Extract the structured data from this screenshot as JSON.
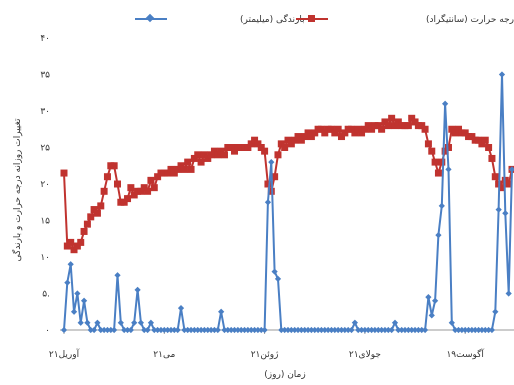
{
  "chart_data": {
    "type": "line",
    "title": "",
    "xlabel": "زمان (روز)",
    "ylabel": "تغییرات روزانه درجه حرارت و بارندگی",
    "ylim": [
      0,
      40
    ],
    "yticks": [
      "۰",
      "۵.",
      "۱۰",
      "۱۵",
      "۲۰",
      "۲۵",
      "۳۰",
      "۳۵",
      "۴۰"
    ],
    "ytick_values": [
      0,
      5,
      10,
      15,
      20,
      25,
      30,
      35,
      40
    ],
    "xlim": [
      1,
      135
    ],
    "xticks": [
      {
        "day": 1,
        "label": "۲۱آوریل"
      },
      {
        "day": 31,
        "label": "۲۱می"
      },
      {
        "day": 61,
        "label": "۲۱ژوئن"
      },
      {
        "day": 91,
        "label": "۲۱جولای"
      },
      {
        "day": 121,
        "label": "۱۹آگوست"
      }
    ],
    "legend_position": "top",
    "series": [
      {
        "name": "بارندگی (میلیمتر)",
        "color": "#4a7fc4",
        "marker": "diamond",
        "points": [
          [
            1,
            0
          ],
          [
            2,
            6.5
          ],
          [
            3,
            9
          ],
          [
            4,
            2.5
          ],
          [
            5,
            5
          ],
          [
            6,
            1
          ],
          [
            7,
            4
          ],
          [
            8,
            1
          ],
          [
            9,
            0
          ],
          [
            10,
            0
          ],
          [
            11,
            1
          ],
          [
            12,
            0
          ],
          [
            13,
            0
          ],
          [
            14,
            0
          ],
          [
            15,
            0
          ],
          [
            16,
            0
          ],
          [
            17,
            7.5
          ],
          [
            18,
            1
          ],
          [
            19,
            0
          ],
          [
            20,
            0
          ],
          [
            21,
            0
          ],
          [
            22,
            1
          ],
          [
            23,
            5.5
          ],
          [
            24,
            1
          ],
          [
            25,
            0
          ],
          [
            26,
            0
          ],
          [
            27,
            1
          ],
          [
            28,
            0
          ],
          [
            29,
            0
          ],
          [
            30,
            0
          ],
          [
            31,
            0
          ],
          [
            32,
            0
          ],
          [
            33,
            0
          ],
          [
            34,
            0
          ],
          [
            35,
            0
          ],
          [
            36,
            3
          ],
          [
            37,
            0
          ],
          [
            38,
            0
          ],
          [
            39,
            0
          ],
          [
            40,
            0
          ],
          [
            41,
            0
          ],
          [
            42,
            0
          ],
          [
            43,
            0
          ],
          [
            44,
            0
          ],
          [
            45,
            0
          ],
          [
            46,
            0
          ],
          [
            47,
            0
          ],
          [
            48,
            2.5
          ],
          [
            49,
            0
          ],
          [
            50,
            0
          ],
          [
            51,
            0
          ],
          [
            52,
            0
          ],
          [
            53,
            0
          ],
          [
            54,
            0
          ],
          [
            55,
            0
          ],
          [
            56,
            0
          ],
          [
            57,
            0
          ],
          [
            58,
            0
          ],
          [
            59,
            0
          ],
          [
            60,
            0
          ],
          [
            61,
            0
          ],
          [
            62,
            17.5
          ],
          [
            63,
            23
          ],
          [
            64,
            8
          ],
          [
            65,
            7
          ],
          [
            66,
            0
          ],
          [
            67,
            0
          ],
          [
            68,
            0
          ],
          [
            69,
            0
          ],
          [
            70,
            0
          ],
          [
            71,
            0
          ],
          [
            72,
            0
          ],
          [
            73,
            0
          ],
          [
            74,
            0
          ],
          [
            75,
            0
          ],
          [
            76,
            0
          ],
          [
            77,
            0
          ],
          [
            78,
            0
          ],
          [
            79,
            0
          ],
          [
            80,
            0
          ],
          [
            81,
            0
          ],
          [
            82,
            0
          ],
          [
            83,
            0
          ],
          [
            84,
            0
          ],
          [
            85,
            0
          ],
          [
            86,
            0
          ],
          [
            87,
            0
          ],
          [
            88,
            1
          ],
          [
            89,
            0
          ],
          [
            90,
            0
          ],
          [
            91,
            0
          ],
          [
            92,
            0
          ],
          [
            93,
            0
          ],
          [
            94,
            0
          ],
          [
            95,
            0
          ],
          [
            96,
            0
          ],
          [
            97,
            0
          ],
          [
            98,
            0
          ],
          [
            99,
            0
          ],
          [
            100,
            1
          ],
          [
            101,
            0
          ],
          [
            102,
            0
          ],
          [
            103,
            0
          ],
          [
            104,
            0
          ],
          [
            105,
            0
          ],
          [
            106,
            0
          ],
          [
            107,
            0
          ],
          [
            108,
            0
          ],
          [
            109,
            0
          ],
          [
            110,
            4.5
          ],
          [
            111,
            2
          ],
          [
            112,
            4
          ],
          [
            113,
            13
          ],
          [
            114,
            17
          ],
          [
            115,
            31
          ],
          [
            116,
            22
          ],
          [
            117,
            1
          ],
          [
            118,
            0
          ],
          [
            119,
            0
          ],
          [
            120,
            0
          ],
          [
            121,
            0
          ],
          [
            122,
            0
          ],
          [
            123,
            0
          ],
          [
            124,
            0
          ],
          [
            125,
            0
          ],
          [
            126,
            0
          ],
          [
            127,
            0
          ],
          [
            128,
            0
          ],
          [
            129,
            0
          ],
          [
            130,
            2.5
          ],
          [
            131,
            16.5
          ],
          [
            132,
            35
          ],
          [
            133,
            16
          ],
          [
            134,
            5
          ],
          [
            135,
            22
          ]
        ]
      },
      {
        "name": "درجه حرارت (سانتیگراد)",
        "color": "#c0332f",
        "marker": "square",
        "points": [
          [
            1,
            21.5
          ],
          [
            2,
            11.5
          ],
          [
            3,
            12
          ],
          [
            4,
            11
          ],
          [
            5,
            11.5
          ],
          [
            6,
            12
          ],
          [
            7,
            13.5
          ],
          [
            8,
            14.5
          ],
          [
            9,
            15.5
          ],
          [
            10,
            16.5
          ],
          [
            11,
            16
          ],
          [
            12,
            17
          ],
          [
            13,
            19
          ],
          [
            14,
            21
          ],
          [
            15,
            22.5
          ],
          [
            16,
            22.5
          ],
          [
            17,
            20
          ],
          [
            18,
            17.5
          ],
          [
            19,
            17.5
          ],
          [
            20,
            18
          ],
          [
            21,
            19.5
          ],
          [
            22,
            18.5
          ],
          [
            23,
            19
          ],
          [
            24,
            19
          ],
          [
            25,
            19.5
          ],
          [
            26,
            19
          ],
          [
            27,
            20.5
          ],
          [
            28,
            19.5
          ],
          [
            29,
            21
          ],
          [
            30,
            21.5
          ],
          [
            31,
            21.5
          ],
          [
            32,
            21.5
          ],
          [
            33,
            22
          ],
          [
            34,
            21.5
          ],
          [
            35,
            22
          ],
          [
            36,
            22.5
          ],
          [
            37,
            22
          ],
          [
            38,
            23
          ],
          [
            39,
            22
          ],
          [
            40,
            23.5
          ],
          [
            41,
            24
          ],
          [
            42,
            23
          ],
          [
            43,
            24
          ],
          [
            44,
            23.5
          ],
          [
            45,
            24
          ],
          [
            46,
            24.5
          ],
          [
            47,
            24
          ],
          [
            48,
            24.5
          ],
          [
            49,
            24
          ],
          [
            50,
            25
          ],
          [
            51,
            25
          ],
          [
            52,
            24.5
          ],
          [
            53,
            25
          ],
          [
            54,
            25
          ],
          [
            55,
            25
          ],
          [
            56,
            25
          ],
          [
            57,
            25.5
          ],
          [
            58,
            26
          ],
          [
            59,
            25.5
          ],
          [
            60,
            25
          ],
          [
            61,
            24.5
          ],
          [
            62,
            20
          ],
          [
            63,
            19
          ],
          [
            64,
            21
          ],
          [
            65,
            24
          ],
          [
            66,
            25.5
          ],
          [
            67,
            25
          ],
          [
            68,
            26
          ],
          [
            69,
            25.5
          ],
          [
            70,
            26
          ],
          [
            71,
            26.5
          ],
          [
            72,
            26
          ],
          [
            73,
            26.5
          ],
          [
            74,
            27
          ],
          [
            75,
            26.5
          ],
          [
            76,
            27
          ],
          [
            77,
            27.5
          ],
          [
            78,
            27.5
          ],
          [
            79,
            27
          ],
          [
            80,
            27.5
          ],
          [
            81,
            27.5
          ],
          [
            82,
            27
          ],
          [
            83,
            27.5
          ],
          [
            84,
            26.5
          ],
          [
            85,
            27
          ],
          [
            86,
            27.5
          ],
          [
            87,
            27.5
          ],
          [
            88,
            27
          ],
          [
            89,
            27.5
          ],
          [
            90,
            27
          ],
          [
            91,
            27.5
          ],
          [
            92,
            28
          ],
          [
            93,
            27.5
          ],
          [
            94,
            28
          ],
          [
            95,
            28
          ],
          [
            96,
            27.5
          ],
          [
            97,
            28.5
          ],
          [
            98,
            28
          ],
          [
            99,
            29
          ],
          [
            100,
            28
          ],
          [
            101,
            28.5
          ],
          [
            102,
            28
          ],
          [
            103,
            28
          ],
          [
            104,
            28
          ],
          [
            105,
            29
          ],
          [
            106,
            28.5
          ],
          [
            107,
            28
          ],
          [
            108,
            28
          ],
          [
            109,
            27.5
          ],
          [
            110,
            25.5
          ],
          [
            111,
            24.5
          ],
          [
            112,
            23
          ],
          [
            113,
            21.5
          ],
          [
            114,
            23
          ],
          [
            115,
            24.5
          ],
          [
            116,
            25
          ],
          [
            117,
            27.5
          ],
          [
            118,
            27
          ],
          [
            119,
            27.5
          ],
          [
            120,
            27
          ],
          [
            121,
            27
          ],
          [
            122,
            26.5
          ],
          [
            123,
            26.5
          ],
          [
            124,
            26
          ],
          [
            125,
            26
          ],
          [
            126,
            25.5
          ],
          [
            127,
            26
          ],
          [
            128,
            25
          ],
          [
            129,
            23.5
          ],
          [
            130,
            21
          ],
          [
            131,
            20
          ],
          [
            132,
            19.5
          ],
          [
            133,
            20.5
          ],
          [
            134,
            20
          ],
          [
            135,
            22
          ]
        ]
      }
    ]
  }
}
